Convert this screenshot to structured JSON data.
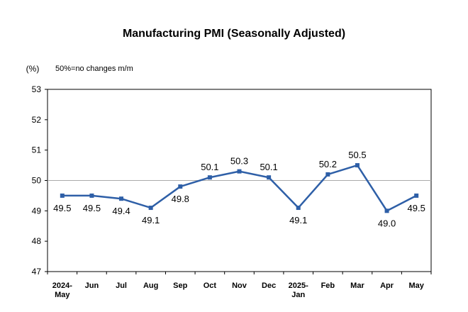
{
  "chart_data": {
    "type": "line",
    "title": "Manufacturing PMI (Seasonally Adjusted)",
    "unit_label": "(%)",
    "note": "50%=no changes m/m",
    "categories": [
      [
        "2024-",
        "May"
      ],
      [
        "Jun"
      ],
      [
        "Jul"
      ],
      [
        "Aug"
      ],
      [
        "Sep"
      ],
      [
        "Oct"
      ],
      [
        "Nov"
      ],
      [
        "Dec"
      ],
      [
        "2025-",
        "Jan"
      ],
      [
        "Feb"
      ],
      [
        "Mar"
      ],
      [
        "Apr"
      ],
      [
        "May"
      ]
    ],
    "values": [
      49.5,
      49.5,
      49.4,
      49.1,
      49.8,
      50.1,
      50.3,
      50.1,
      49.1,
      50.2,
      50.5,
      49.0,
      49.5
    ],
    "data_labels": [
      "49.5",
      "49.5",
      "49.4",
      "49.1",
      "49.8",
      "50.1",
      "50.3",
      "50.1",
      "49.1",
      "50.2",
      "50.5",
      "49.0",
      "49.5"
    ],
    "label_position": [
      "below",
      "below",
      "below",
      "below",
      "below",
      "above",
      "above",
      "above",
      "below",
      "above",
      "above",
      "below",
      "below"
    ],
    "ylim": [
      47,
      53
    ],
    "yticks": [
      "47",
      "48",
      "49",
      "50",
      "51",
      "52",
      "53"
    ],
    "reference_line": 50,
    "line_color": "#2e5fa7",
    "reference_color": "#aaaaaa",
    "grid": false
  }
}
